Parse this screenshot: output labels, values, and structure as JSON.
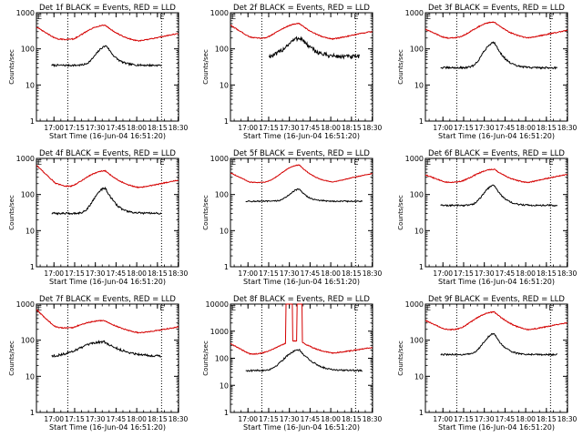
{
  "figure": {
    "time_ticks": [
      "17:00",
      "17:15",
      "17:30",
      "17:45",
      "18:00",
      "18:15",
      "18:30"
    ],
    "y_ticks": [
      "1",
      "10",
      "100",
      "1000"
    ],
    "y_ticks_det8": [
      "1",
      "10",
      "100",
      "1000",
      "10000"
    ],
    "ylabel": "Counts/sec",
    "xlabel": "Start Time (16-Jun-04 16:51:20)",
    "corner_left": "E",
    "corner_right": "E",
    "colors": {
      "events": "#000000",
      "lld": "#d40000",
      "axes": "#000000",
      "background": "#ffffff"
    }
  },
  "chart_data": [
    {
      "type": "line",
      "title": "Det 1f BLACK = Events, RED = LLD",
      "xlabel": "Start Time (16-Jun-04 16:51:20)",
      "ylabel": "Counts/sec",
      "xlim_min": [
        -4,
        99
      ],
      "ylim": [
        1,
        1000
      ],
      "yscale": "log",
      "vlines_min": [
        18.7,
        86.7,
        98.7
      ],
      "series": [
        {
          "name": "Events",
          "color": "#000000",
          "start": 7,
          "end": 87,
          "base": 35,
          "peak": 120,
          "peak_t": 47,
          "width": 3,
          "noise": 0.06
        },
        {
          "name": "LLD",
          "color": "#d40000",
          "start": -4,
          "end": 99,
          "base": 140,
          "peak": 450,
          "peak_t": 46,
          "width": 6,
          "noise": 0.03,
          "bump": [
            [
              -4,
              400
            ],
            [
              10,
              190
            ],
            [
              22,
              150
            ]
          ]
        }
      ]
    },
    {
      "type": "line",
      "title": "Det 2f BLACK = Events, RED = LLD",
      "xlabel": "Start Time (16-Jun-04 16:51:20)",
      "ylabel": "Counts/sec",
      "xlim_min": [
        -4,
        99
      ],
      "ylim": [
        1,
        1000
      ],
      "yscale": "log",
      "vlines_min": [
        18.7,
        86.7,
        98.7
      ],
      "series": [
        {
          "name": "Events",
          "color": "#000000",
          "start": 24,
          "end": 90,
          "base": 60,
          "peak": 200,
          "peak_t": 47,
          "width": 4,
          "noise": 0.14
        },
        {
          "name": "LLD",
          "color": "#d40000",
          "start": -4,
          "end": 99,
          "base": 160,
          "peak": 500,
          "peak_t": 46,
          "width": 6,
          "noise": 0.03,
          "bump": [
            [
              -4,
              450
            ],
            [
              10,
              210
            ],
            [
              22,
              160
            ]
          ]
        }
      ]
    },
    {
      "type": "line",
      "title": "Det 3f BLACK = Events, RED = LLD",
      "xlabel": "Start Time (16-Jun-04 16:51:20)",
      "ylabel": "Counts/sec",
      "xlim_min": [
        -4,
        99
      ],
      "ylim": [
        1,
        1000
      ],
      "yscale": "log",
      "vlines_min": [
        18.7,
        86.7,
        98.7
      ],
      "series": [
        {
          "name": "Events",
          "color": "#000000",
          "start": 7,
          "end": 92,
          "base": 30,
          "peak": 150,
          "peak_t": 46,
          "width": 3,
          "noise": 0.06
        },
        {
          "name": "LLD",
          "color": "#d40000",
          "start": -4,
          "end": 99,
          "base": 170,
          "peak": 550,
          "peak_t": 46,
          "width": 6,
          "noise": 0.03,
          "bump": [
            [
              -4,
              350
            ],
            [
              10,
              200
            ],
            [
              22,
              170
            ]
          ]
        }
      ]
    },
    {
      "type": "line",
      "title": "Det 4f BLACK = Events, RED = LLD",
      "xlabel": "Start Time (16-Jun-04 16:51:20)",
      "ylabel": "Counts/sec",
      "xlim_min": [
        -4,
        99
      ],
      "ylim": [
        1,
        1000
      ],
      "yscale": "log",
      "vlines_min": [
        18.7,
        86.7,
        98.7
      ],
      "series": [
        {
          "name": "Events",
          "color": "#000000",
          "start": 7,
          "end": 87,
          "base": 30,
          "peak": 150,
          "peak_t": 46,
          "width": 3,
          "noise": 0.06
        },
        {
          "name": "LLD",
          "color": "#d40000",
          "start": -4,
          "end": 99,
          "base": 130,
          "peak": 450,
          "peak_t": 46,
          "width": 6,
          "noise": 0.03,
          "bump": [
            [
              -4,
              650
            ],
            [
              10,
              200
            ],
            [
              22,
              130
            ]
          ]
        }
      ]
    },
    {
      "type": "line",
      "title": "Det 5f BLACK = Events, RED = LLD",
      "xlabel": "Start Time (16-Jun-04 16:51:20)",
      "ylabel": "Counts/sec",
      "xlim_min": [
        -4,
        99
      ],
      "ylim": [
        1,
        1000
      ],
      "yscale": "log",
      "vlines_min": [
        18.7,
        86.7,
        98.7
      ],
      "series": [
        {
          "name": "Events",
          "color": "#000000",
          "start": 7,
          "end": 92,
          "base": 65,
          "peak": 140,
          "peak_t": 46,
          "width": 3,
          "noise": 0.04
        },
        {
          "name": "LLD",
          "color": "#d40000",
          "start": -4,
          "end": 99,
          "base": 200,
          "peak": 650,
          "peak_t": 46,
          "width": 5,
          "noise": 0.02,
          "bump": [
            [
              -4,
              400
            ],
            [
              10,
              220
            ],
            [
              22,
              200
            ]
          ]
        }
      ]
    },
    {
      "type": "line",
      "title": "Det 6f BLACK = Events, RED = LLD",
      "xlabel": "Start Time (16-Jun-04 16:51:20)",
      "ylabel": "Counts/sec",
      "xlim_min": [
        -4,
        99
      ],
      "ylim": [
        1,
        1000
      ],
      "yscale": "log",
      "vlines_min": [
        18.7,
        86.7,
        98.7
      ],
      "series": [
        {
          "name": "Events",
          "color": "#000000",
          "start": 7,
          "end": 92,
          "base": 50,
          "peak": 180,
          "peak_t": 46,
          "width": 3,
          "noise": 0.05
        },
        {
          "name": "LLD",
          "color": "#d40000",
          "start": -4,
          "end": 99,
          "base": 190,
          "peak": 500,
          "peak_t": 46,
          "width": 6,
          "noise": 0.03,
          "bump": [
            [
              -4,
              350
            ],
            [
              10,
              220
            ],
            [
              22,
              190
            ]
          ]
        }
      ]
    },
    {
      "type": "line",
      "title": "Det 7f BLACK = Events, RED = LLD",
      "xlabel": "Start Time (16-Jun-04 16:51:20)",
      "ylabel": "Counts/sec",
      "xlim_min": [
        -4,
        99
      ],
      "ylim": [
        1,
        1000
      ],
      "yscale": "log",
      "vlines_min": [
        18.7,
        86.7,
        98.7
      ],
      "series": [
        {
          "name": "Events",
          "color": "#000000",
          "start": 7,
          "end": 87,
          "base": 35,
          "peak": 90,
          "peak_t": 45,
          "width": 7,
          "noise": 0.07
        },
        {
          "name": "LLD",
          "color": "#d40000",
          "start": -4,
          "end": 99,
          "base": 120,
          "peak": 350,
          "peak_t": 45,
          "width": 9,
          "noise": 0.03,
          "bump": [
            [
              -4,
              700
            ],
            [
              10,
              200
            ],
            [
              22,
              120
            ]
          ]
        }
      ]
    },
    {
      "type": "line",
      "title": "Det 8f BLACK = Events, RED = LLD",
      "xlabel": "Start Time (16-Jun-04 16:51:20)",
      "ylabel": "Counts/sec",
      "xlim_min": [
        -4,
        99
      ],
      "ylim": [
        1,
        10000
      ],
      "yscale": "log",
      "vlines_min": [
        18.7,
        86.7,
        98.7
      ],
      "series": [
        {
          "name": "Events",
          "color": "#000000",
          "start": 7,
          "end": 92,
          "base": 35,
          "peak": 200,
          "peak_t": 46,
          "width": 4,
          "noise": 0.07
        },
        {
          "name": "LLD",
          "color": "#d40000",
          "start": -4,
          "end": 99,
          "base": 130,
          "peak": 450,
          "peak_t": 46,
          "width": 6,
          "noise": 0.04,
          "bump": [
            [
              -4,
              350
            ],
            [
              10,
              140
            ],
            [
              22,
              130
            ]
          ],
          "saturation": [
            {
              "from": 36,
              "to": 41,
              "value": 10000
            },
            {
              "from": 44,
              "to": 48,
              "value": 10000
            }
          ]
        }
      ]
    },
    {
      "type": "line",
      "title": "Det 9f BLACK = Events, RED = LLD",
      "xlabel": "Start Time (16-Jun-04 16:51:20)",
      "ylabel": "Counts/sec",
      "xlim_min": [
        -4,
        99
      ],
      "ylim": [
        1,
        1000
      ],
      "yscale": "log",
      "vlines_min": [
        18.7,
        86.7,
        98.7
      ],
      "series": [
        {
          "name": "Events",
          "color": "#000000",
          "start": 7,
          "end": 92,
          "base": 40,
          "peak": 150,
          "peak_t": 46,
          "width": 3,
          "noise": 0.05
        },
        {
          "name": "LLD",
          "color": "#d40000",
          "start": -4,
          "end": 99,
          "base": 160,
          "peak": 600,
          "peak_t": 46,
          "width": 6,
          "noise": 0.03,
          "bump": [
            [
              -4,
              350
            ],
            [
              10,
              200
            ],
            [
              22,
              160
            ]
          ]
        }
      ]
    }
  ]
}
